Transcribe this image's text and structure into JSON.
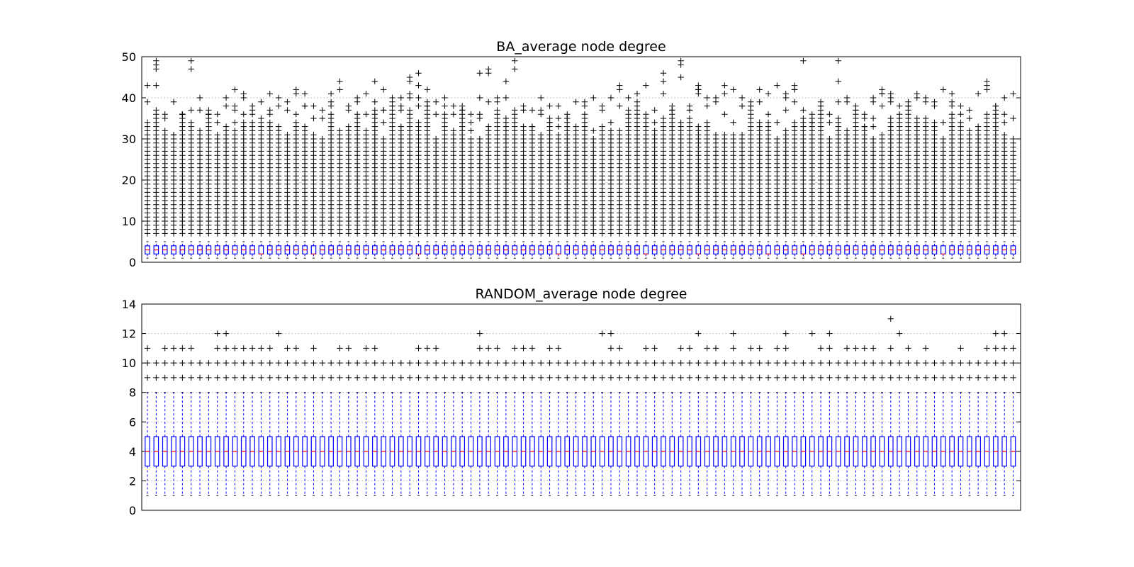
{
  "chart_data": [
    {
      "type": "box",
      "title": "BA_average node degree",
      "n_boxes": 100,
      "ylim": [
        0,
        50
      ],
      "yticks": [
        0,
        10,
        20,
        30,
        40,
        50
      ],
      "grid": "horizontal-dotted",
      "box": {
        "q1": 2,
        "median": 3,
        "q3": 4,
        "whisker_low": 1,
        "whisker_high": 5
      },
      "median_variants": [
        2,
        3
      ],
      "outliers": {
        "min": 7,
        "typical_max_range": [
          30,
          38
        ],
        "notable_max": [
          43,
          49,
          36,
          39,
          36,
          49,
          40,
          37,
          36,
          40,
          42,
          41,
          38,
          39,
          41,
          40,
          39,
          42,
          41,
          38,
          37,
          41,
          44,
          38,
          40,
          41,
          44,
          42,
          40,
          40,
          45,
          46,
          42,
          39,
          40,
          38,
          38,
          36,
          46,
          47,
          40,
          44,
          49,
          38,
          37,
          40,
          38,
          38,
          35,
          39,
          39,
          40,
          38,
          40,
          43,
          40,
          41,
          43,
          37,
          46,
          38,
          49,
          38,
          43,
          40,
          40,
          43,
          42,
          40,
          39,
          42,
          41,
          43,
          41
        ]
      }
    },
    {
      "type": "box",
      "title": "RANDOM_average node degree",
      "n_boxes": 100,
      "ylim": [
        0,
        14
      ],
      "yticks": [
        0,
        2,
        4,
        6,
        8,
        10,
        12,
        14
      ],
      "grid": "horizontal-dotted",
      "box": {
        "q1": 3,
        "median": 4,
        "q3": 5,
        "whisker_low": 1,
        "whisker_high": 8
      },
      "outliers": {
        "always": [
          9,
          10
        ],
        "extra_11_12_13": "varies by box",
        "max": 13
      }
    }
  ],
  "colors": {
    "box": "#0000ff",
    "median": "#ff0000",
    "outlier": "#000000",
    "axes": "#000000",
    "grid": "#b0b0b0"
  }
}
